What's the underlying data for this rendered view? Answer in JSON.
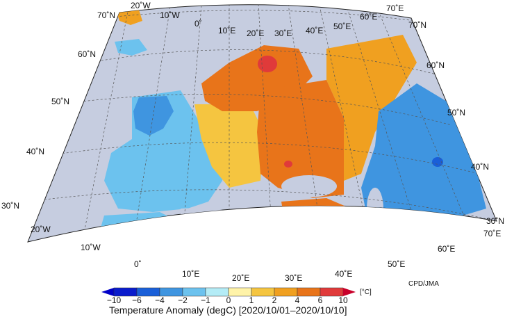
{
  "map": {
    "title": "Temperature Anomaly (degC) [2020/10/01–2020/10/10]",
    "credit": "CPD/JMA",
    "unit": "[°C]",
    "lon_labels_top": [
      "20˚W",
      "10˚W",
      "0˚",
      "10˚E",
      "20˚E",
      "30˚E",
      "40˚E",
      "50˚E",
      "60˚E",
      "70˚E"
    ],
    "lon_labels_bottom": [
      "20˚W",
      "10˚W",
      "0˚",
      "10˚E",
      "20˚E",
      "30˚E",
      "40˚E",
      "50˚E",
      "60˚E",
      "70˚E"
    ],
    "lat_labels_left": [
      "70˚N",
      "60˚N",
      "50˚N",
      "40˚N",
      "30˚N"
    ],
    "lat_labels_right": [
      "70˚N",
      "60˚N",
      "50˚N",
      "40˚N",
      "30˚N"
    ]
  },
  "colorbar": {
    "ticks": [
      "−10",
      "−6",
      "−4",
      "−2",
      "−1",
      "0",
      "1",
      "2",
      "4",
      "6",
      "10"
    ],
    "colors": [
      "#0a1ccc",
      "#1a5fd8",
      "#3f95e0",
      "#6cc2ee",
      "#b4ecf6",
      "#fff3a8",
      "#f5c540",
      "#f0a020",
      "#e8741a",
      "#e03a3a"
    ],
    "under_color": "#0000c8",
    "over_color": "#c8002a"
  }
}
